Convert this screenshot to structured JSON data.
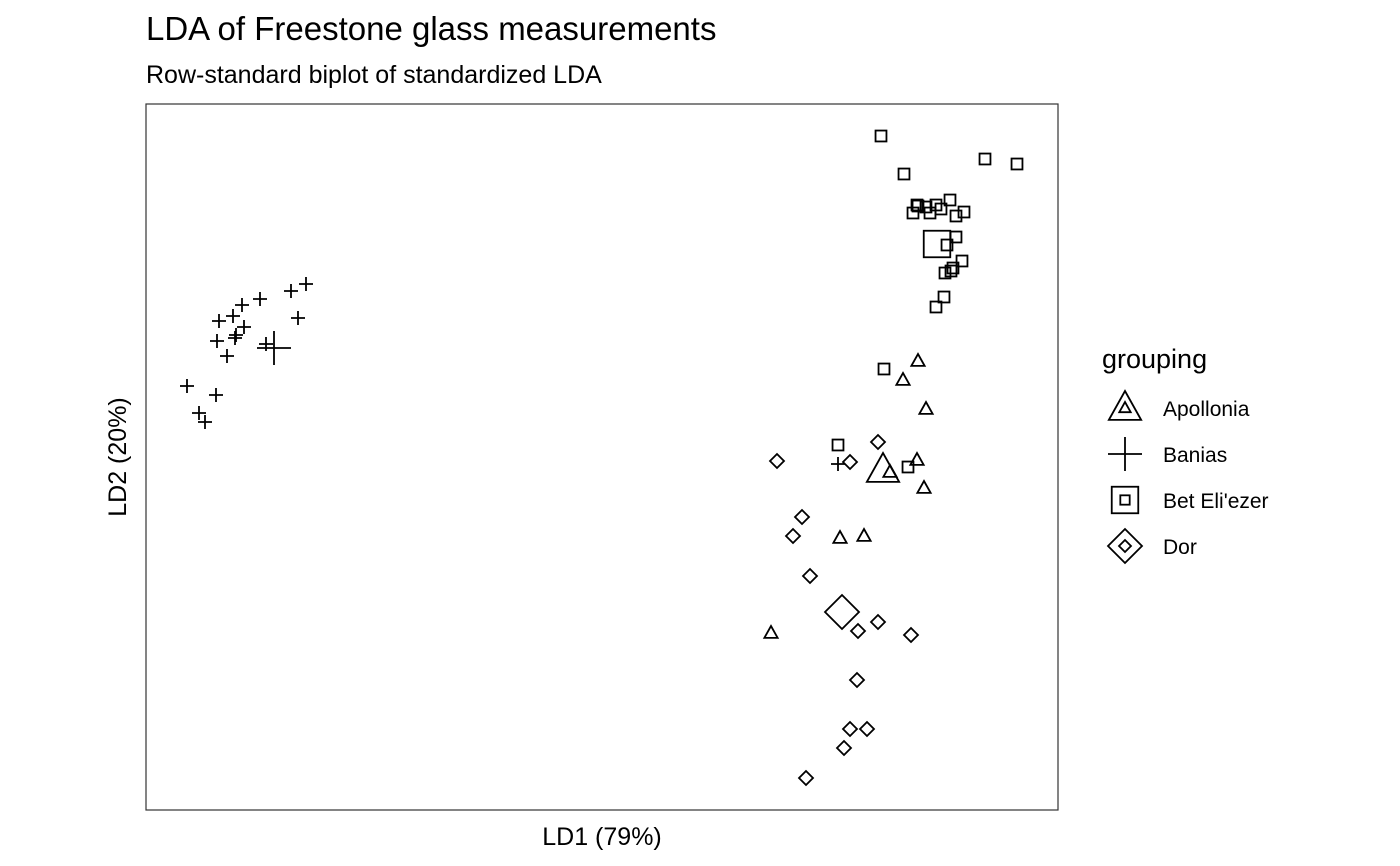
{
  "chart_data": {
    "type": "scatter",
    "title": "LDA of Freestone glass measurements",
    "subtitle": "Row-standard biplot of standardized LDA",
    "xlabel": "LD1 (79%)",
    "ylabel": "LD2 (20%)",
    "xlim": [
      0,
      912
    ],
    "ylim": [
      0,
      706
    ],
    "grid": false,
    "legend": {
      "title": "grouping",
      "placement": "right",
      "entries": [
        "Apollonia",
        "Banias",
        "Bet Eli'ezer",
        "Dor"
      ]
    },
    "series": [
      {
        "name": "Apollonia",
        "shape": "triangle",
        "centroid": [
          737,
          340
        ],
        "points": [
          [
            772,
            449
          ],
          [
            757,
            430
          ],
          [
            780,
            401
          ],
          [
            771,
            350
          ],
          [
            744,
            338
          ],
          [
            778,
            322
          ],
          [
            694,
            272
          ],
          [
            718,
            274
          ],
          [
            625,
            177
          ]
        ]
      },
      {
        "name": "Banias",
        "shape": "plus",
        "centroid": [
          128,
          462
        ],
        "points": [
          [
            160,
            526
          ],
          [
            145,
            519
          ],
          [
            152,
            492
          ],
          [
            114,
            511
          ],
          [
            96,
            505
          ],
          [
            73,
            489
          ],
          [
            87,
            494
          ],
          [
            89,
            472
          ],
          [
            71,
            469
          ],
          [
            90,
            475
          ],
          [
            98,
            483
          ],
          [
            81,
            454
          ],
          [
            120,
            466
          ],
          [
            41,
            424
          ],
          [
            70,
            415
          ],
          [
            53,
            397
          ],
          [
            59,
            388
          ],
          [
            692,
            346
          ]
        ]
      },
      {
        "name": "Bet Eli'ezer",
        "shape": "square",
        "centroid": [
          791,
          566
        ],
        "points": [
          [
            735,
            674
          ],
          [
            839,
            651
          ],
          [
            871,
            646
          ],
          [
            758,
            636
          ],
          [
            804,
            610
          ],
          [
            771,
            605
          ],
          [
            790,
            605
          ],
          [
            772,
            604
          ],
          [
            780,
            603
          ],
          [
            795,
            601
          ],
          [
            767,
            597
          ],
          [
            784,
            597
          ],
          [
            818,
            598
          ],
          [
            810,
            594
          ],
          [
            810,
            573
          ],
          [
            801,
            565
          ],
          [
            816,
            549
          ],
          [
            807,
            542
          ],
          [
            805,
            539
          ],
          [
            799,
            537
          ],
          [
            798,
            513
          ],
          [
            790,
            503
          ],
          [
            738,
            441
          ],
          [
            692,
            365
          ],
          [
            762,
            343
          ]
        ]
      },
      {
        "name": "Dor",
        "shape": "diamond",
        "centroid": [
          696,
          198
        ],
        "points": [
          [
            732,
            368
          ],
          [
            631,
            349
          ],
          [
            704,
            348
          ],
          [
            656,
            293
          ],
          [
            647,
            274
          ],
          [
            664,
            234
          ],
          [
            732,
            188
          ],
          [
            712,
            179
          ],
          [
            765,
            175
          ],
          [
            711,
            130
          ],
          [
            704,
            81
          ],
          [
            721,
            81
          ],
          [
            698,
            62
          ],
          [
            660,
            32
          ]
        ]
      }
    ]
  }
}
